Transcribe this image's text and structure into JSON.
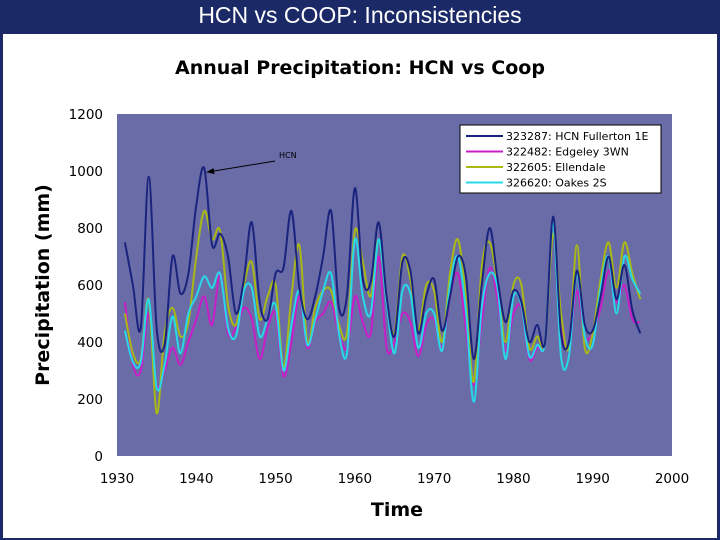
{
  "slide": {
    "title": "HCN vs COOP: Inconsistencies"
  },
  "chart_data": {
    "type": "line",
    "title": "Annual Precipitation: HCN vs Coop",
    "xlabel": "Time",
    "ylabel": "Precipitation (mm)",
    "xlim": [
      1930,
      2000
    ],
    "ylim": [
      0,
      1200
    ],
    "xticks": [
      1930,
      1940,
      1950,
      1960,
      1970,
      1980,
      1990,
      2000
    ],
    "yticks": [
      0,
      200,
      400,
      600,
      800,
      1000,
      1200
    ],
    "grid": false,
    "plot_background": "#6a6ca8",
    "legend_position": "top-right",
    "annotation": {
      "text": "HCN",
      "points_to": {
        "x": 1941,
        "y": 1010
      }
    },
    "x": [
      1931,
      1932,
      1933,
      1934,
      1935,
      1936,
      1937,
      1938,
      1939,
      1940,
      1941,
      1942,
      1943,
      1944,
      1945,
      1946,
      1947,
      1948,
      1949,
      1950,
      1951,
      1952,
      1953,
      1954,
      1955,
      1956,
      1957,
      1958,
      1959,
      1960,
      1961,
      1962,
      1963,
      1964,
      1965,
      1966,
      1967,
      1968,
      1969,
      1970,
      1971,
      1972,
      1973,
      1974,
      1975,
      1976,
      1977,
      1978,
      1979,
      1980,
      1981,
      1982,
      1983,
      1984,
      1985,
      1986,
      1987,
      1988,
      1989,
      1990,
      1991,
      1992,
      1993,
      1994,
      1995,
      1996
    ],
    "series": [
      {
        "name": "323287: HCN Fullerton 1E",
        "color": "#1a237e",
        "values": [
          750,
          600,
          450,
          980,
          450,
          390,
          700,
          570,
          640,
          880,
          1010,
          740,
          780,
          700,
          500,
          620,
          820,
          540,
          480,
          640,
          660,
          860,
          590,
          480,
          560,
          700,
          860,
          520,
          560,
          940,
          620,
          610,
          820,
          560,
          420,
          680,
          650,
          430,
          560,
          620,
          440,
          560,
          700,
          630,
          340,
          600,
          800,
          620,
          470,
          580,
          540,
          400,
          460,
          400,
          840,
          430,
          400,
          650,
          460,
          440,
          560,
          700,
          550,
          670,
          510,
          430
        ]
      },
      {
        "name": "322482: Edgeley 3WN",
        "color": "#c81ec8",
        "values": [
          540,
          320,
          300,
          500,
          250,
          300,
          380,
          320,
          400,
          480,
          560,
          460,
          640,
          430,
          450,
          520,
          480,
          340,
          450,
          500,
          280,
          400,
          560,
          380,
          470,
          500,
          540,
          430,
          380,
          560,
          470,
          430,
          700,
          380,
          400,
          500,
          470,
          350,
          460,
          480,
          380,
          560,
          640,
          450,
          250,
          470,
          660,
          550,
          370,
          500,
          520,
          340,
          380,
          400,
          780,
          460,
          380,
          580,
          420,
          430,
          520,
          650,
          540,
          600,
          480,
          470
        ]
      },
      {
        "name": "322605: Ellendale",
        "color": "#a8b814",
        "values": [
          500,
          360,
          340,
          550,
          150,
          430,
          520,
          420,
          470,
          700,
          860,
          760,
          790,
          530,
          460,
          600,
          680,
          480,
          560,
          600,
          310,
          560,
          740,
          400,
          520,
          580,
          580,
          460,
          430,
          790,
          680,
          560,
          760,
          550,
          430,
          700,
          620,
          440,
          600,
          580,
          400,
          640,
          760,
          560,
          260,
          660,
          750,
          600,
          400,
          600,
          600,
          380,
          420,
          400,
          780,
          500,
          380,
          740,
          380,
          430,
          620,
          750,
          590,
          750,
          640,
          550
        ]
      },
      {
        "name": "326620: Oakes 2S",
        "color": "#28d8e8",
        "values": [
          440,
          330,
          330,
          550,
          240,
          320,
          490,
          360,
          500,
          560,
          630,
          590,
          640,
          450,
          420,
          580,
          590,
          420,
          480,
          530,
          300,
          460,
          580,
          390,
          480,
          580,
          640,
          430,
          360,
          760,
          560,
          500,
          760,
          540,
          360,
          580,
          570,
          380,
          500,
          500,
          370,
          600,
          700,
          510,
          190,
          520,
          640,
          590,
          340,
          560,
          530,
          350,
          390,
          400,
          820,
          350,
          350,
          640,
          420,
          390,
          590,
          700,
          500,
          700,
          620,
          570
        ]
      }
    ]
  }
}
